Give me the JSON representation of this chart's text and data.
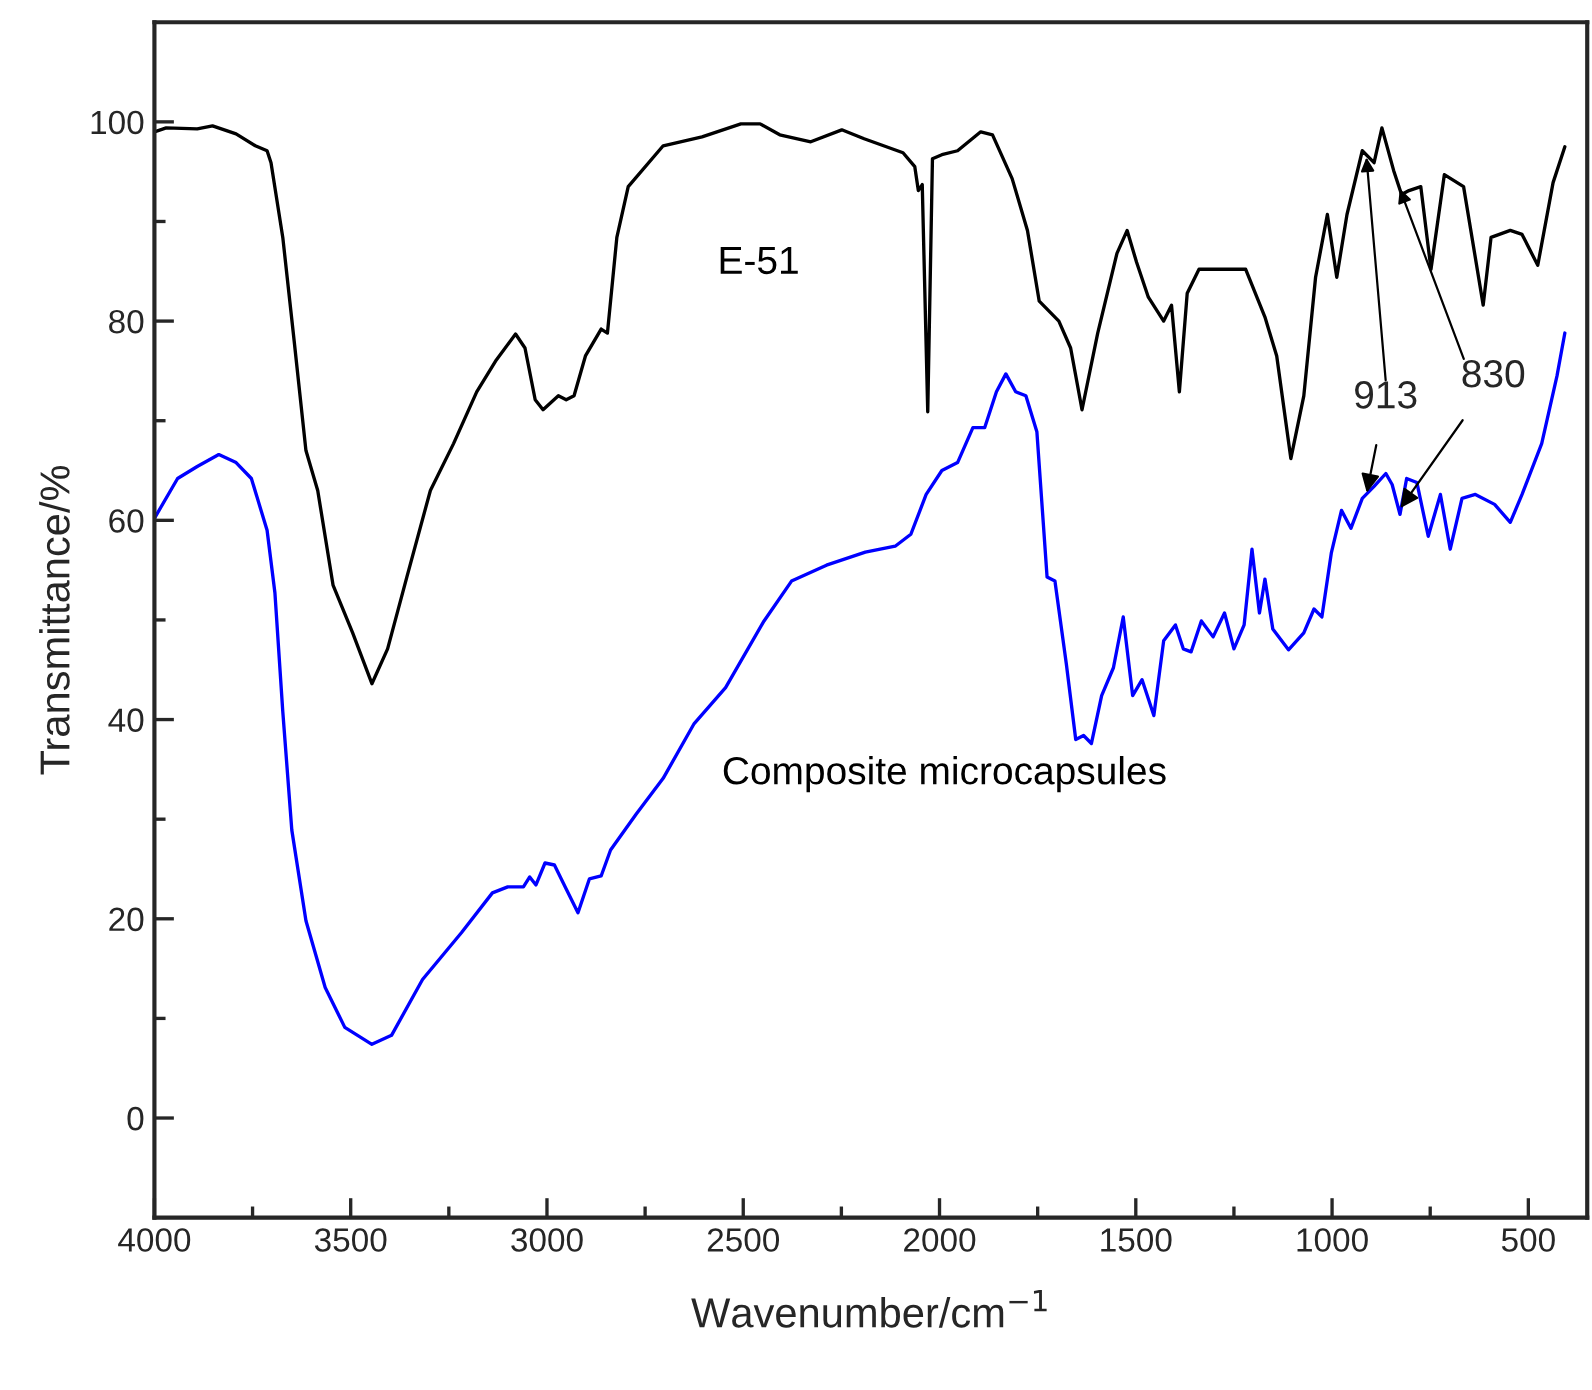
{
  "chart_data": {
    "type": "line",
    "xlabel": "Wavenumber/cm$^{−1}$",
    "ylabel": "Transmittance/%",
    "xlim": [
      4000,
      350
    ],
    "ylim": [
      -10,
      110
    ],
    "xticks": [
      4000,
      {
        "value": 3750,
        "label": null
      },
      3500,
      {
        "value": 3250,
        "label": null
      },
      3000,
      {
        "value": 2750,
        "label": null
      },
      2500,
      {
        "value": 2250,
        "label": null
      },
      2000,
      {
        "value": 1750,
        "label": null
      },
      1500,
      {
        "value": 1250,
        "label": null
      },
      1000,
      {
        "value": 750,
        "label": null
      },
      500
    ],
    "yticks": [
      0,
      {
        "value": 10,
        "label": null
      },
      20,
      {
        "value": 30,
        "label": null
      },
      40,
      {
        "value": 50,
        "label": null
      },
      60,
      {
        "value": 70,
        "label": null
      },
      80,
      {
        "value": 90,
        "label": null
      },
      100
    ],
    "grid": false,
    "legend": false,
    "marker": "none",
    "line_style": "solid",
    "annotations": [
      {
        "text": "913",
        "x": 913,
        "y": 62.5
      },
      {
        "text": "830",
        "x": 830,
        "y": 61
      }
    ],
    "series": [
      {
        "name": "E-51",
        "color": "#000000",
        "x": [
          4000,
          3970,
          3891,
          3852,
          3792,
          3743,
          3713,
          3703,
          3673,
          3644,
          3614,
          3584,
          3545,
          3495,
          3446,
          3406,
          3357,
          3297,
          3238,
          3179,
          3129,
          3080,
          3056,
          3030,
          3010,
          2971,
          2951,
          2931,
          2902,
          2862,
          2846,
          2822,
          2793,
          2704,
          2605,
          2506,
          2457,
          2407,
          2328,
          2249,
          2192,
          2093,
          2063,
          2054,
          2044,
          2030,
          2018,
          1994,
          1954,
          1895,
          1865,
          1815,
          1776,
          1746,
          1696,
          1666,
          1637,
          1597,
          1548,
          1522,
          1498,
          1468,
          1429,
          1409,
          1389,
          1369,
          1339,
          1220,
          1171,
          1141,
          1105,
          1072,
          1042,
          1012,
          988,
          962,
          923,
          893,
          873,
          843,
          823,
          804,
          774,
          748,
          714,
          665,
          615,
          595,
          546,
          516,
          476,
          437,
          407
        ],
        "values": [
          99.0,
          99.4,
          99.3,
          99.6,
          98.8,
          97.6,
          97.1,
          95.9,
          88.4,
          78.0,
          67.0,
          63.0,
          53.5,
          48.7,
          43.6,
          47.1,
          54.3,
          63.0,
          67.7,
          72.9,
          76.1,
          78.7,
          77.3,
          72.1,
          71.1,
          72.5,
          72.1,
          72.5,
          76.5,
          79.2,
          78.8,
          88.4,
          93.5,
          97.6,
          98.5,
          99.8,
          99.8,
          98.7,
          98.0,
          99.2,
          98.3,
          96.9,
          95.5,
          93.1,
          93.7,
          70.9,
          96.3,
          96.7,
          97.1,
          99.0,
          98.7,
          94.3,
          89.1,
          82.0,
          80.0,
          77.3,
          71.1,
          78.8,
          86.8,
          89.1,
          85.9,
          82.4,
          80.0,
          81.6,
          72.9,
          82.8,
          85.2,
          85.2,
          80.4,
          76.5,
          66.2,
          72.5,
          84.4,
          90.7,
          84.4,
          90.7,
          97.1,
          95.9,
          99.4,
          95.1,
          92.7,
          93.1,
          93.5,
          85.2,
          94.7,
          93.5,
          81.6,
          88.4,
          89.1,
          88.7,
          85.6,
          93.9,
          97.5
        ]
      },
      {
        "name": "Composite microcapsules",
        "color": "#0000ff",
        "x": [
          4000,
          3941,
          3891,
          3836,
          3792,
          3753,
          3713,
          3693,
          3673,
          3650,
          3614,
          3565,
          3515,
          3446,
          3396,
          3317,
          3218,
          3139,
          3100,
          3060,
          3044,
          3028,
          3005,
          2981,
          2951,
          2921,
          2892,
          2862,
          2838,
          2773,
          2704,
          2625,
          2545,
          2447,
          2377,
          2288,
          2189,
          2113,
          2073,
          2034,
          1994,
          1954,
          1915,
          1885,
          1855,
          1831,
          1806,
          1780,
          1752,
          1726,
          1706,
          1677,
          1653,
          1633,
          1613,
          1587,
          1557,
          1532,
          1508,
          1484,
          1454,
          1429,
          1399,
          1379,
          1359,
          1333,
          1303,
          1274,
          1250,
          1224,
          1204,
          1185,
          1171,
          1151,
          1111,
          1072,
          1046,
          1026,
          1002,
          976,
          952,
          923,
          893,
          863,
          847,
          827,
          810,
          784,
          755,
          724,
          699,
          669,
          635,
          586,
          546,
          516,
          466,
          427,
          407
        ],
        "values": [
          60.2,
          64.2,
          65.4,
          66.6,
          65.8,
          64.2,
          59.0,
          52.7,
          40.8,
          28.9,
          19.8,
          13.1,
          9.1,
          7.4,
          8.3,
          13.9,
          18.6,
          22.6,
          23.2,
          23.2,
          24.2,
          23.4,
          25.6,
          25.4,
          23.0,
          20.6,
          24.0,
          24.3,
          26.9,
          30.5,
          34.1,
          39.6,
          43.2,
          49.9,
          53.9,
          55.5,
          56.8,
          57.4,
          58.6,
          62.6,
          65.0,
          65.8,
          69.3,
          69.3,
          72.9,
          74.7,
          72.9,
          72.5,
          68.9,
          54.3,
          53.9,
          45.6,
          38.0,
          38.4,
          37.6,
          42.4,
          45.2,
          50.3,
          42.4,
          44.0,
          40.4,
          47.9,
          49.5,
          47.1,
          46.8,
          49.9,
          48.3,
          50.7,
          47.1,
          49.5,
          57.1,
          50.7,
          54.1,
          49.1,
          47.0,
          48.7,
          51.1,
          50.3,
          56.7,
          61.0,
          59.2,
          62.2,
          63.4,
          64.7,
          63.6,
          60.6,
          64.2,
          63.8,
          58.4,
          62.6,
          57.1,
          62.2,
          62.6,
          61.6,
          59.8,
          62.6,
          67.7,
          74.5,
          78.8
        ]
      }
    ]
  }
}
